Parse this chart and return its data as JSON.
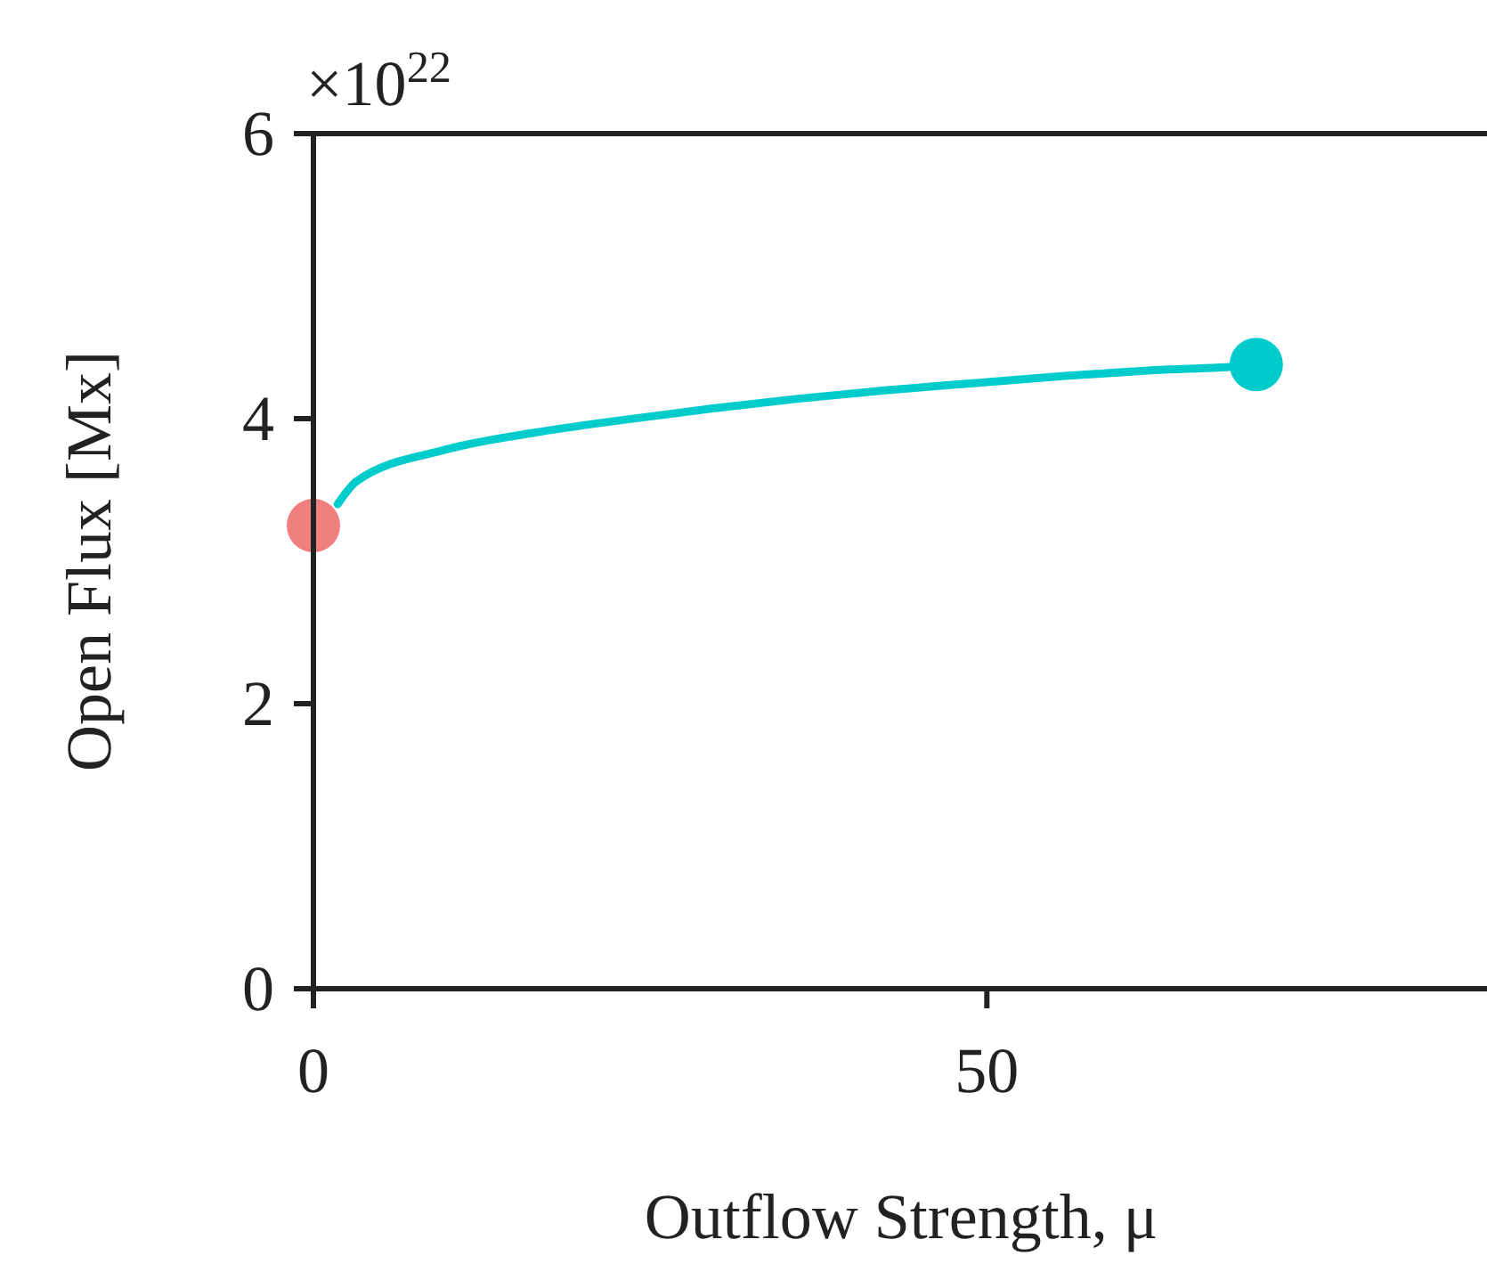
{
  "chart_data": {
    "type": "line",
    "xlabel": "Outflow Strength, μ",
    "ylabel": "Open Flux [Mx]",
    "annotations": [
      "×10$^{22}$"
    ],
    "xlim": [
      0,
      87
    ],
    "ylim": [
      0,
      6
    ],
    "xticks": [
      0,
      50
    ],
    "yticks": [
      0,
      2,
      4,
      6
    ],
    "grid": false,
    "series": [
      {
        "color": "#00cccc",
        "marker": "none",
        "x": [
          1.8,
          3.2,
          9.7,
          16.3,
          22.9,
          29.5,
          36,
          42.6,
          49.2,
          55.8,
          62.4,
          69,
          70
        ],
        "values": [
          3.4,
          3.56,
          3.78,
          3.9,
          3.99,
          4.07,
          4.14,
          4.2,
          4.25,
          4.3,
          4.34,
          4.37,
          4.38
        ]
      },
      {
        "type": "scatter",
        "color": "#f08080",
        "marker": "circle",
        "x": [
          0
        ],
        "values": [
          3.25
        ]
      },
      {
        "type": "scatter",
        "color": "#00cccc",
        "marker": "circle",
        "x": [
          70
        ],
        "values": [
          4.38
        ]
      }
    ]
  }
}
